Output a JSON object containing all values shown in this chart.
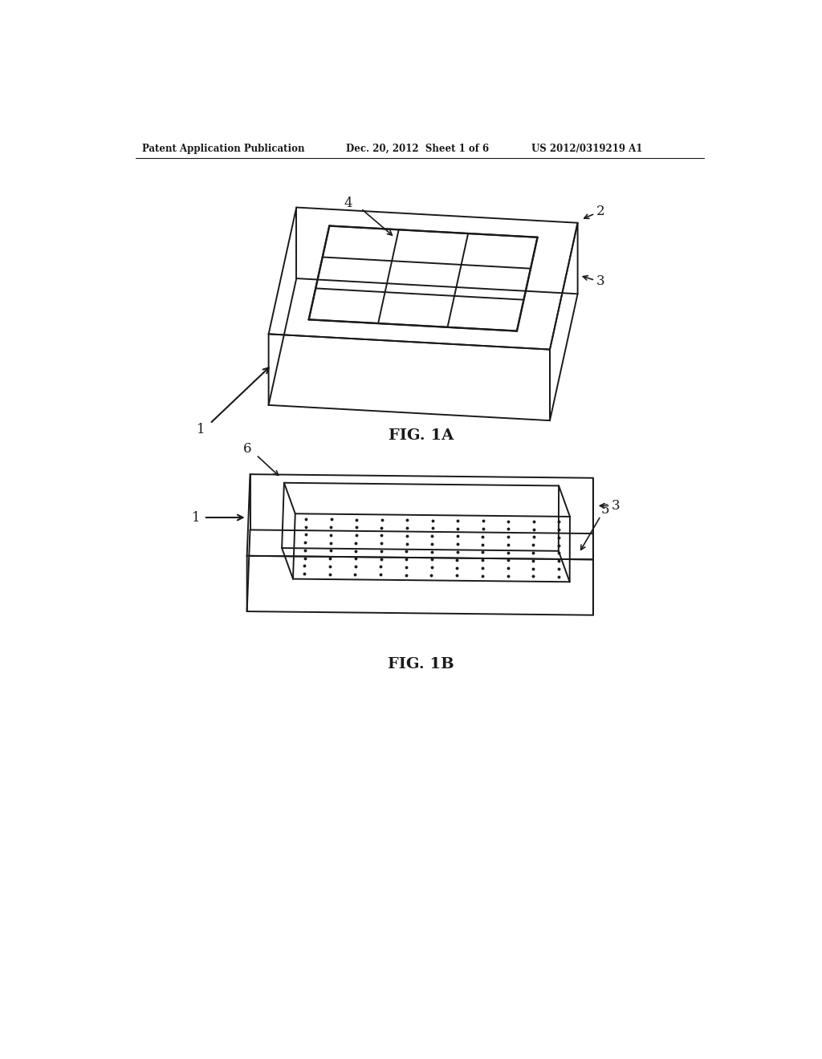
{
  "bg_color": "#ffffff",
  "line_color": "#1a1a1a",
  "header_left": "Patent Application Publication",
  "header_mid": "Dec. 20, 2012  Sheet 1 of 6",
  "header_right": "US 2012/0319219 A1",
  "fig1a_label": "FIG. 1A",
  "fig1b_label": "FIG. 1B"
}
